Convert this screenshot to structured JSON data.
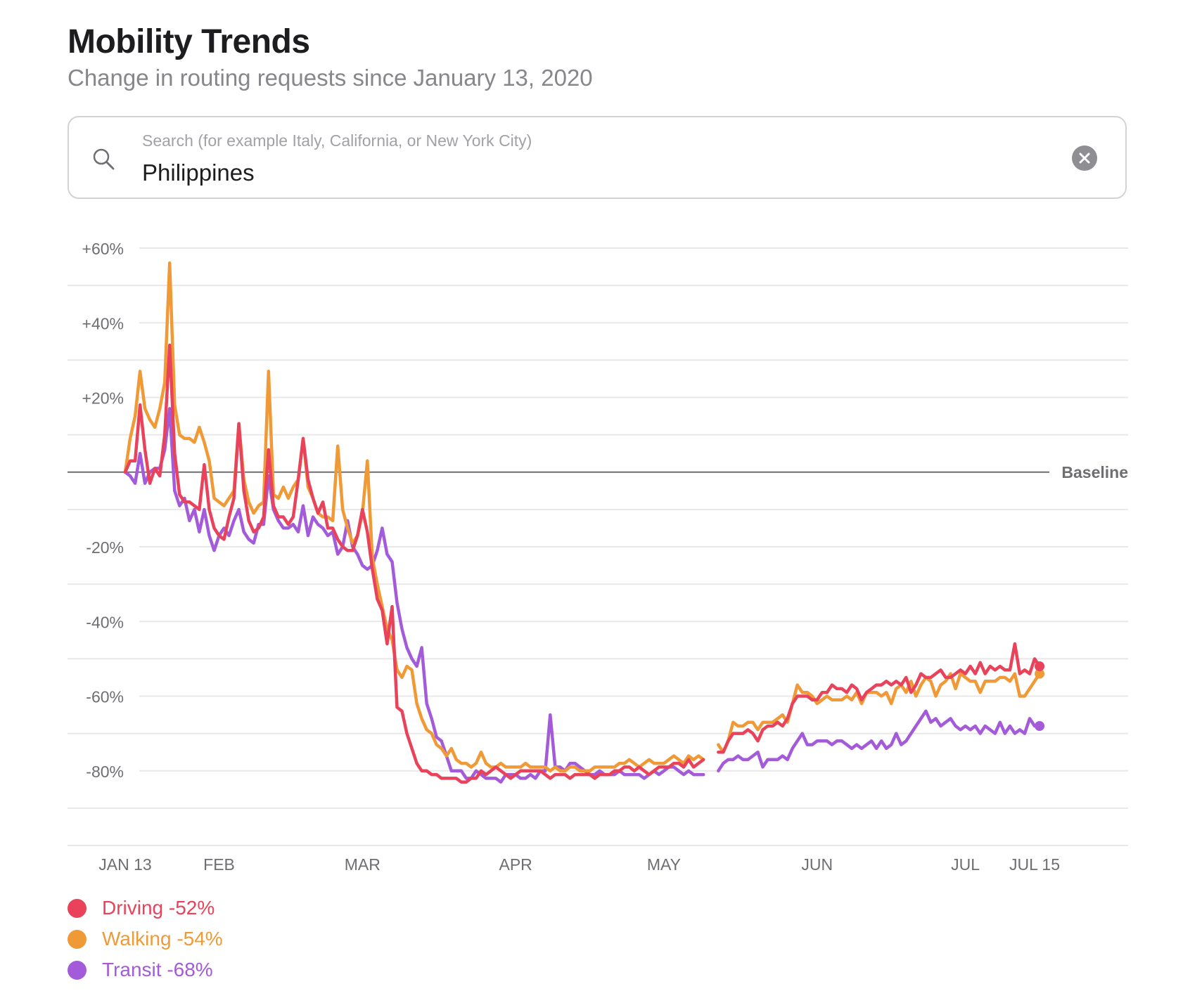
{
  "header": {
    "title": "Mobility Trends",
    "subtitle": "Change in routing requests since January 13, 2020"
  },
  "search": {
    "placeholder": "Search (for example Italy, California, or New York City)",
    "value": "Philippines",
    "search_icon": "search-icon",
    "clear_icon": "clear-circle-icon"
  },
  "colors": {
    "driving": "#e8435a",
    "walking": "#f09a37",
    "transit": "#a45bd9",
    "grid": "#e8e8e8",
    "baseline": "#6e6e73",
    "axis_text": "#6e6e73"
  },
  "legend": [
    {
      "key": "driving",
      "label": "Driving -52%",
      "color": "#e8435a"
    },
    {
      "key": "walking",
      "label": "Walking -54%",
      "color": "#f09a37"
    },
    {
      "key": "transit",
      "label": "Transit -68%",
      "color": "#a45bd9"
    }
  ],
  "chart_data": {
    "type": "line",
    "title": "Mobility Trends",
    "subtitle": "Change in routing requests since January 13, 2020",
    "xlabel": "",
    "ylabel": "",
    "x_start": "2020-01-13",
    "x_end": "2020-07-15",
    "xlim_days": [
      0,
      184
    ],
    "ylim": [
      -100,
      60
    ],
    "yticks": [
      60,
      40,
      20,
      -20,
      -40,
      -60,
      -80
    ],
    "ytick_labels": [
      "+60%",
      "+40%",
      "+20%",
      "-20%",
      "-40%",
      "-60%",
      "-80%"
    ],
    "grid": true,
    "baseline": {
      "value": 0,
      "label": "Baseline"
    },
    "xticks": [
      {
        "day": 0,
        "label": "JAN 13"
      },
      {
        "day": 19,
        "label": "FEB"
      },
      {
        "day": 48,
        "label": "MAR"
      },
      {
        "day": 79,
        "label": "APR"
      },
      {
        "day": 109,
        "label": "MAY"
      },
      {
        "day": 140,
        "label": "JUN"
      },
      {
        "day": 170,
        "label": "JUL"
      },
      {
        "day": 184,
        "label": "JUL 15"
      }
    ],
    "gap_days": [
      118,
      119
    ],
    "legend_position": "bottom-left",
    "series": [
      {
        "name": "Driving",
        "key": "driving",
        "final_label": "-52%",
        "values": [
          0,
          3,
          3,
          18,
          6,
          -3,
          1,
          -1,
          10,
          34,
          5,
          -6,
          -8,
          -8,
          -9,
          -10,
          2,
          -10,
          -15,
          -17,
          -18,
          -12,
          -7,
          13,
          -5,
          -13,
          -16,
          -15,
          -12,
          6,
          -9,
          -12,
          -12,
          -14,
          -12,
          -2,
          9,
          -2,
          -7,
          -11,
          -8,
          -15,
          -15,
          -18,
          -20,
          -21,
          -21,
          -17,
          -10,
          -16,
          -26,
          -34,
          -37,
          -46,
          -36,
          -63,
          -64,
          -70,
          -74,
          -78,
          -80,
          -80,
          -81,
          -81,
          -82,
          -82,
          -82,
          -82,
          -83,
          -83,
          -82,
          -82,
          -80,
          -81,
          -80,
          -79,
          -80,
          -81,
          -82,
          -81,
          -80,
          -80,
          -80,
          -80,
          -80,
          -81,
          -82,
          -81,
          -81,
          -81,
          -82,
          -81,
          -81,
          -81,
          -81,
          -82,
          -81,
          -81,
          -81,
          -80,
          -80,
          -79,
          -79,
          -80,
          -79,
          -80,
          -81,
          -80,
          -79,
          -79,
          -79,
          -78,
          -78,
          -79,
          -77,
          -79,
          -78,
          -77,
          null,
          null,
          -75,
          -75,
          -72,
          -70,
          -70,
          -70,
          -69,
          -70,
          -72,
          -69,
          -68,
          -68,
          -67,
          -68,
          -66,
          -62,
          -60,
          -60,
          -60,
          -61,
          -61,
          -59,
          -59,
          -57,
          -58,
          -58,
          -59,
          -57,
          -58,
          -61,
          -59,
          -58,
          -57,
          -57,
          -56,
          -57,
          -56,
          -57,
          -55,
          -59,
          -57,
          -54,
          -55,
          -55,
          -54,
          -53,
          -55,
          -55,
          -54,
          -53,
          -54,
          -52,
          -54,
          -51,
          -54,
          -52,
          -53,
          -52,
          -53,
          -53,
          -46,
          -54,
          -53,
          -54,
          -50,
          -52
        ]
      },
      {
        "name": "Walking",
        "key": "walking",
        "final_label": "-54%",
        "values": [
          0,
          9,
          15,
          27,
          17,
          14,
          12,
          17,
          24,
          56,
          18,
          10,
          9,
          9,
          8,
          12,
          8,
          3,
          -7,
          -8,
          -9,
          -7,
          -5,
          13,
          -2,
          -8,
          -11,
          -9,
          -8,
          27,
          -6,
          -7,
          -4,
          -7,
          -4,
          -2,
          9,
          -4,
          -7,
          -11,
          -12,
          -12,
          -13,
          7,
          -10,
          -15,
          -19,
          -17,
          -11,
          3,
          -23,
          -30,
          -36,
          -42,
          -45,
          -53,
          -55,
          -52,
          -53,
          -62,
          -66,
          -69,
          -70,
          -73,
          -74,
          -76,
          -74,
          -77,
          -78,
          -78,
          -79,
          -78,
          -75,
          -78,
          -79,
          -79,
          -78,
          -79,
          -79,
          -79,
          -79,
          -78,
          -79,
          -79,
          -79,
          -79,
          -80,
          -79,
          -80,
          -80,
          -79,
          -79,
          -80,
          -80,
          -80,
          -79,
          -79,
          -79,
          -79,
          -79,
          -78,
          -78,
          -77,
          -78,
          -79,
          -78,
          -77,
          -78,
          -78,
          -78,
          -77,
          -76,
          -77,
          -78,
          -76,
          -77,
          -76,
          -77,
          null,
          null,
          -73,
          -75,
          -72,
          -67,
          -68,
          -68,
          -67,
          -67,
          -69,
          -67,
          -67,
          -67,
          -66,
          -65,
          -67,
          -62,
          -57,
          -59,
          -59,
          -60,
          -62,
          -61,
          -60,
          -61,
          -61,
          -61,
          -60,
          -61,
          -59,
          -62,
          -59,
          -59,
          -59,
          -60,
          -59,
          -62,
          -58,
          -57,
          -59,
          -56,
          -60,
          -57,
          -55,
          -56,
          -60,
          -57,
          -56,
          -54,
          -58,
          -54,
          -55,
          -56,
          -56,
          -59,
          -56,
          -56,
          -56,
          -55,
          -55,
          -56,
          -54,
          -60,
          -60,
          -58,
          -56,
          -54
        ]
      },
      {
        "name": "Transit",
        "key": "transit",
        "final_label": "-68%",
        "values": [
          0,
          -1,
          -3,
          5,
          -3,
          0,
          1,
          1,
          6,
          17,
          -5,
          -9,
          -7,
          -13,
          -10,
          -16,
          -10,
          -17,
          -21,
          -17,
          -15,
          -17,
          -13,
          -10,
          -16,
          -18,
          -19,
          -14,
          -14,
          -1,
          -10,
          -13,
          -15,
          -15,
          -14,
          -16,
          -9,
          -17,
          -12,
          -14,
          -15,
          -17,
          -16,
          -22,
          -20,
          -13,
          -20,
          -22,
          -25,
          -26,
          -25,
          -21,
          -15,
          -22,
          -24,
          -35,
          -42,
          -47,
          -50,
          -52,
          -47,
          -62,
          -66,
          -71,
          -72,
          -76,
          -80,
          -80,
          -80,
          -82,
          -82,
          -80,
          -81,
          -82,
          -82,
          -82,
          -83,
          -81,
          -81,
          -81,
          -82,
          -82,
          -81,
          -82,
          -80,
          -80,
          -65,
          -79,
          -79,
          -80,
          -78,
          -78,
          -79,
          -80,
          -81,
          -81,
          -80,
          -81,
          -81,
          -81,
          -80,
          -81,
          -81,
          -81,
          -81,
          -82,
          -81,
          -80,
          -81,
          -80,
          -79,
          -79,
          -80,
          -81,
          -80,
          -81,
          -81,
          -81,
          null,
          null,
          -80,
          -78,
          -77,
          -77,
          -76,
          -77,
          -77,
          -76,
          -75,
          -79,
          -77,
          -77,
          -77,
          -76,
          -77,
          -74,
          -72,
          -70,
          -73,
          -73,
          -72,
          -72,
          -72,
          -73,
          -72,
          -72,
          -73,
          -74,
          -73,
          -74,
          -73,
          -72,
          -74,
          -72,
          -74,
          -73,
          -70,
          -73,
          -72,
          -70,
          -68,
          -66,
          -64,
          -67,
          -66,
          -68,
          -67,
          -66,
          -68,
          -69,
          -68,
          -69,
          -68,
          -70,
          -68,
          -69,
          -70,
          -67,
          -70,
          -68,
          -70,
          -69,
          -70,
          -66,
          -68,
          -68
        ]
      }
    ]
  }
}
